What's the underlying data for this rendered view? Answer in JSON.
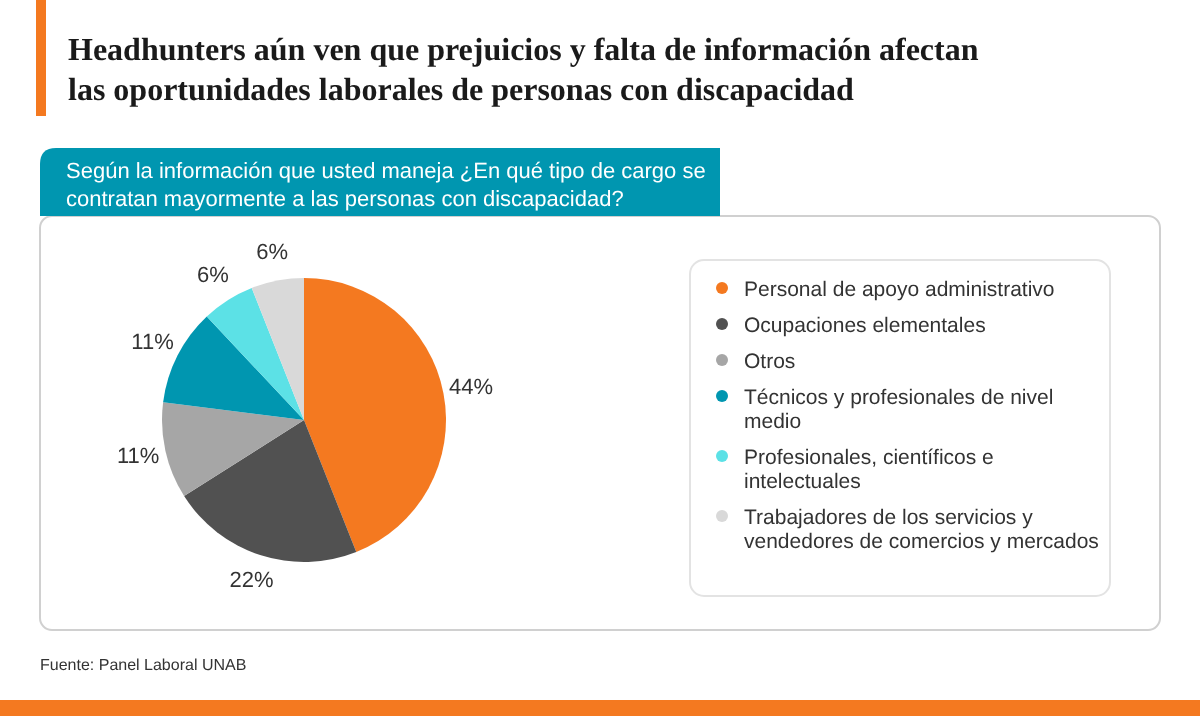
{
  "chart_data": {
    "type": "pie",
    "title": "Headhunters aún ven que prejuicios y falta de información afectan las oportunidades laborales de personas con discapacidad",
    "subtitle": "Según la información que usted maneja ¿En qué tipo de cargo se contratan mayormente a las personas con discapacidad?",
    "categories": [
      "Personal de apoyo administrativo",
      "Ocupaciones elementales",
      "Otros",
      "Técnicos y profesionales de nivel medio",
      "Profesionales, científicos e intelectuales",
      "Trabajadores de los servicios y vendedores de comercios y mercados"
    ],
    "values": [
      44,
      22,
      11,
      11,
      6,
      6
    ],
    "colors": [
      "#f47920",
      "#515151",
      "#a6a6a6",
      "#0096b0",
      "#5ce1e6",
      "#d9d9d9"
    ],
    "value_labels": [
      "44%",
      "22%",
      "11%",
      "11%",
      "6%",
      "6%"
    ],
    "legend": "right",
    "annotations": [
      "Fuente: Panel Laboral UNAB"
    ]
  }
}
